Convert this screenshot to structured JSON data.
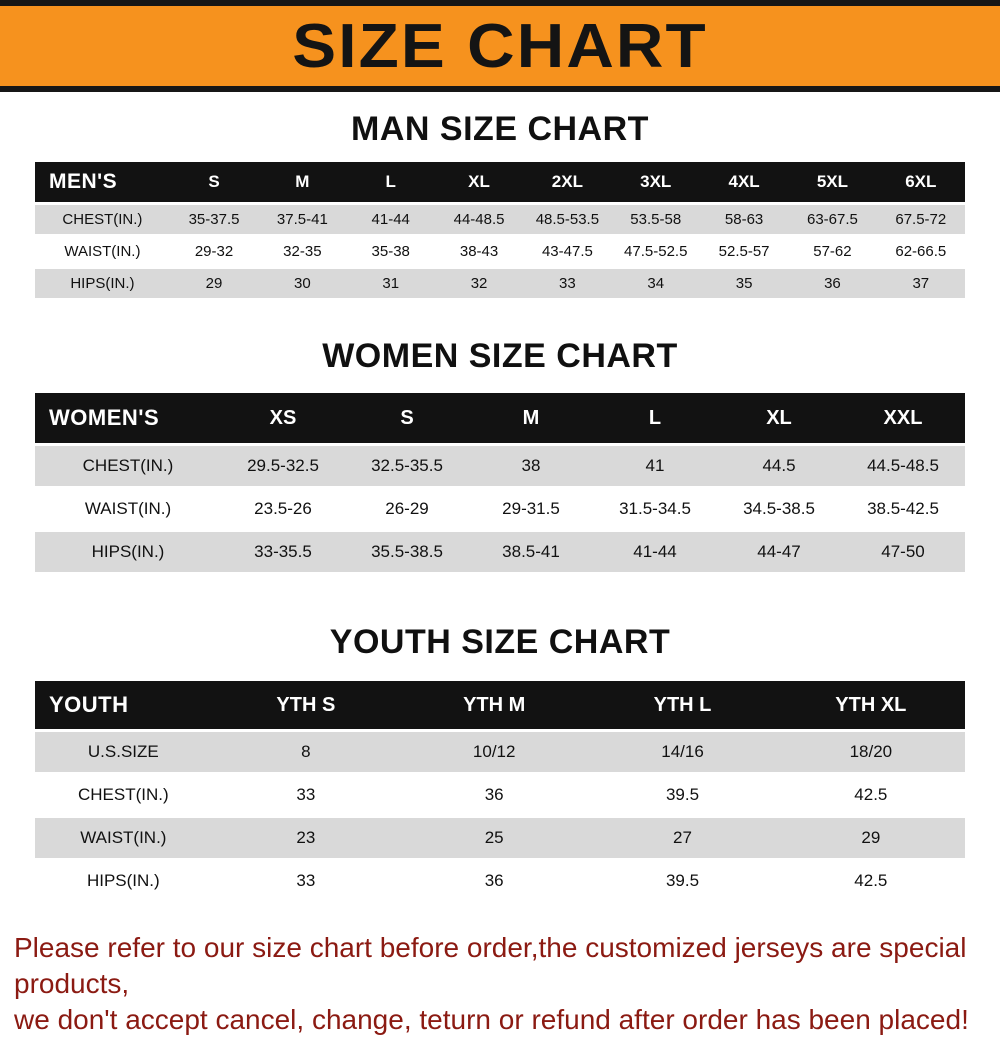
{
  "banner": {
    "title": "SIZE CHART",
    "bg_color": "#F6921E",
    "text_color": "#141414"
  },
  "chart_data": [
    {
      "type": "table",
      "title": "MAN SIZE CHART",
      "label": "MEN'S",
      "columns": [
        "S",
        "M",
        "L",
        "XL",
        "2XL",
        "3XL",
        "4XL",
        "5XL",
        "6XL"
      ],
      "rows": [
        {
          "label": "CHEST(IN.)",
          "values": [
            "35-37.5",
            "37.5-41",
            "41-44",
            "44-48.5",
            "48.5-53.5",
            "53.5-58",
            "58-63",
            "63-67.5",
            "67.5-72"
          ]
        },
        {
          "label": "WAIST(IN.)",
          "values": [
            "29-32",
            "32-35",
            "35-38",
            "38-43",
            "43-47.5",
            "47.5-52.5",
            "52.5-57",
            "57-62",
            "62-66.5"
          ]
        },
        {
          "label": "HIPS(IN.)",
          "values": [
            "29",
            "30",
            "31",
            "32",
            "33",
            "34",
            "35",
            "36",
            "37"
          ]
        }
      ]
    },
    {
      "type": "table",
      "title": "WOMEN SIZE CHART",
      "label": "WOMEN'S",
      "columns": [
        "XS",
        "S",
        "M",
        "L",
        "XL",
        "XXL"
      ],
      "rows": [
        {
          "label": "CHEST(IN.)",
          "values": [
            "29.5-32.5",
            "32.5-35.5",
            "38",
            "41",
            "44.5",
            "44.5-48.5"
          ]
        },
        {
          "label": "WAIST(IN.)",
          "values": [
            "23.5-26",
            "26-29",
            "29-31.5",
            "31.5-34.5",
            "34.5-38.5",
            "38.5-42.5"
          ]
        },
        {
          "label": "HIPS(IN.)",
          "values": [
            "33-35.5",
            "35.5-38.5",
            "38.5-41",
            "41-44",
            "44-47",
            "47-50"
          ]
        }
      ]
    },
    {
      "type": "table",
      "title": "YOUTH SIZE CHART",
      "label": "YOUTH",
      "columns": [
        "YTH S",
        "YTH M",
        "YTH L",
        "YTH XL"
      ],
      "rows": [
        {
          "label": "U.S.SIZE",
          "values": [
            "8",
            "10/12",
            "14/16",
            "18/20"
          ]
        },
        {
          "label": "CHEST(IN.)",
          "values": [
            "33",
            "36",
            "39.5",
            "42.5"
          ]
        },
        {
          "label": "WAIST(IN.)",
          "values": [
            "23",
            "25",
            "27",
            "29"
          ]
        },
        {
          "label": "HIPS(IN.)",
          "values": [
            "33",
            "36",
            "39.5",
            "42.5"
          ]
        }
      ]
    }
  ],
  "footer": {
    "lines": [
      "Please refer to our size chart before order,the customized jerseys are special products,",
      "we don't accept cancel, change, teturn or refund after order has been placed!"
    ],
    "text_color": "#8B1A12"
  }
}
